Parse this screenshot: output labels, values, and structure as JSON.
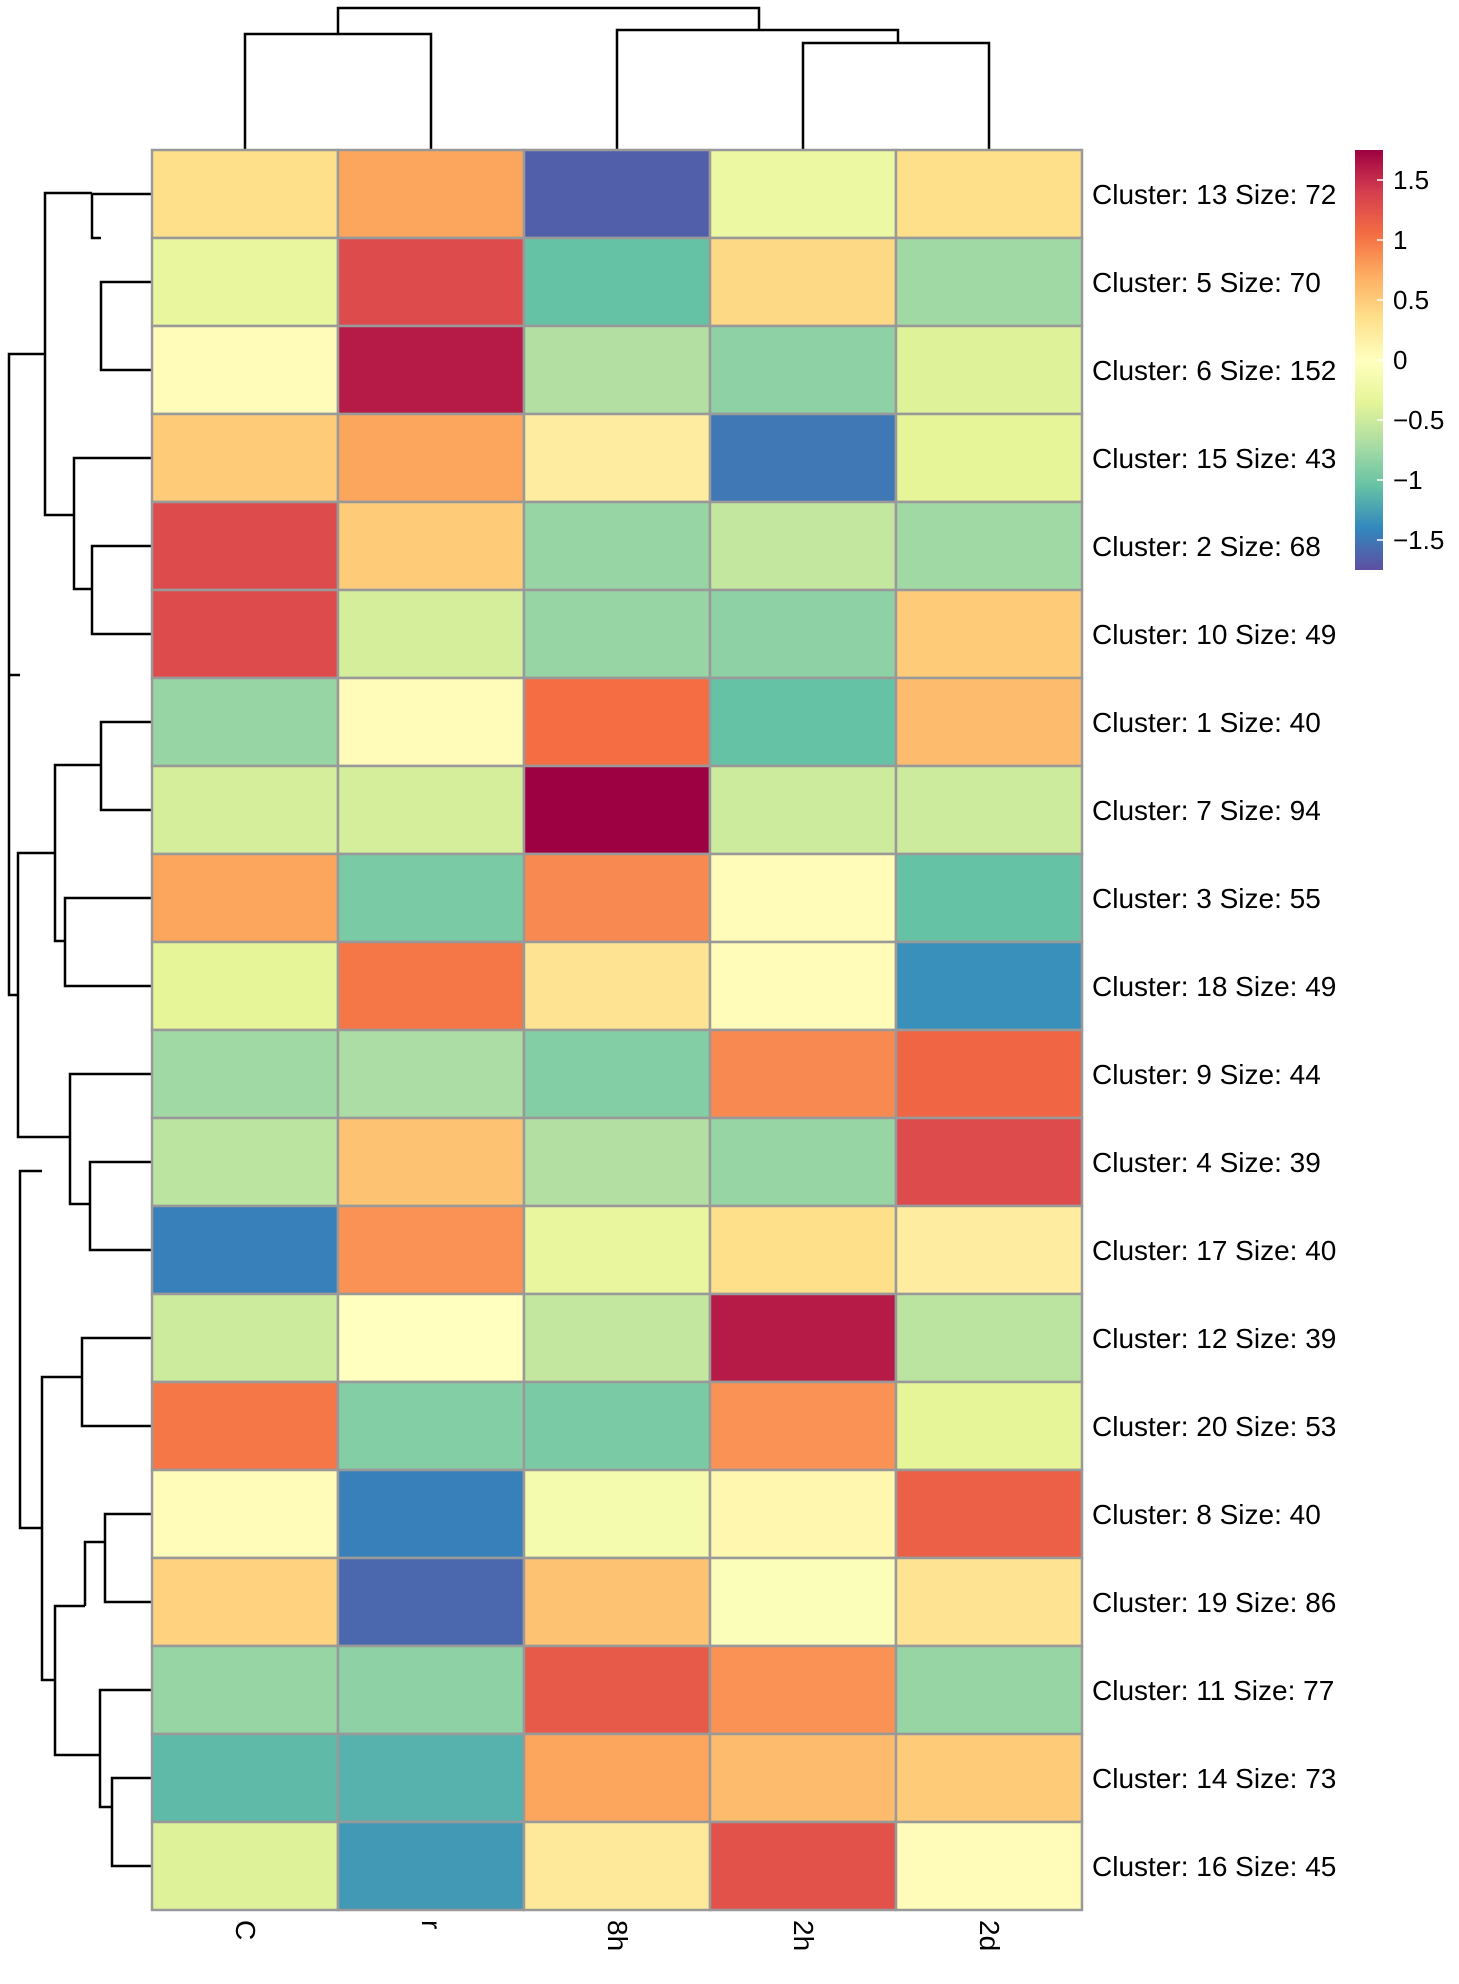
{
  "chart_data": {
    "type": "heatmap",
    "title": "",
    "columns": [
      "C",
      "r",
      "8h",
      "2h",
      "2d"
    ],
    "rows": [
      "Cluster: 13 Size: 72",
      "Cluster: 5 Size: 70",
      "Cluster: 6 Size: 152",
      "Cluster: 15 Size: 43",
      "Cluster: 2 Size: 68",
      "Cluster: 10 Size: 49",
      "Cluster: 1 Size: 40",
      "Cluster: 7 Size: 94",
      "Cluster: 3 Size: 55",
      "Cluster: 18 Size: 49",
      "Cluster: 9 Size: 44",
      "Cluster: 4 Size: 39",
      "Cluster: 17 Size: 40",
      "Cluster: 12 Size: 39",
      "Cluster: 20 Size: 53",
      "Cluster: 8 Size: 40",
      "Cluster: 19 Size: 86",
      "Cluster: 11 Size: 77",
      "Cluster: 14 Size: 73",
      "Cluster: 16 Size: 45"
    ],
    "values": [
      [
        0.35,
        0.75,
        -1.65,
        -0.25,
        0.35
      ],
      [
        -0.3,
        1.3,
        -1.05,
        0.4,
        -0.75
      ],
      [
        0.05,
        1.6,
        -0.65,
        -0.85,
        -0.4
      ],
      [
        0.5,
        0.75,
        0.2,
        -1.5,
        -0.35
      ],
      [
        1.3,
        0.5,
        -0.8,
        -0.55,
        -0.75
      ],
      [
        1.3,
        -0.45,
        -0.8,
        -0.85,
        0.5
      ],
      [
        -0.8,
        0.05,
        1.05,
        -1.05,
        0.6
      ],
      [
        -0.45,
        -0.45,
        1.75,
        -0.5,
        -0.5
      ],
      [
        0.75,
        -0.95,
        0.9,
        0.05,
        -1.05
      ],
      [
        -0.35,
        1.0,
        0.3,
        0.05,
        -1.35
      ],
      [
        -0.75,
        -0.7,
        -0.9,
        0.9,
        1.1
      ],
      [
        -0.6,
        0.55,
        -0.65,
        -0.8,
        1.3
      ],
      [
        -1.45,
        0.85,
        -0.3,
        0.35,
        0.2
      ],
      [
        -0.5,
        0.0,
        -0.55,
        1.6,
        -0.6
      ],
      [
        1.0,
        -0.9,
        -0.95,
        0.85,
        -0.35
      ],
      [
        0.05,
        -1.45,
        -0.15,
        0.1,
        1.15
      ],
      [
        0.45,
        -1.6,
        0.55,
        -0.05,
        0.3
      ],
      [
        -0.8,
        -0.85,
        1.2,
        0.85,
        -0.8
      ],
      [
        -1.1,
        -1.15,
        0.75,
        0.6,
        0.5
      ],
      [
        -0.4,
        -1.3,
        0.25,
        1.25,
        0.05
      ]
    ],
    "colorbar": {
      "ticks": [
        1.5,
        1,
        0.5,
        0,
        -0.5,
        -1,
        -1.5
      ],
      "tick_labels": [
        "1.5",
        "1",
        "0.5",
        "0",
        "−0.5",
        "−1",
        "−1.5"
      ],
      "range": [
        -1.75,
        1.75
      ],
      "palette": [
        "#5E4FA2",
        "#3288BD",
        "#66C2A5",
        "#ABDDA4",
        "#E6F598",
        "#FFFFBF",
        "#FEE08B",
        "#FDAE61",
        "#F46D43",
        "#D53E4F",
        "#9E0142"
      ]
    },
    "cell_border_color": "#999999",
    "grid": false,
    "legend_position": "top-right"
  }
}
